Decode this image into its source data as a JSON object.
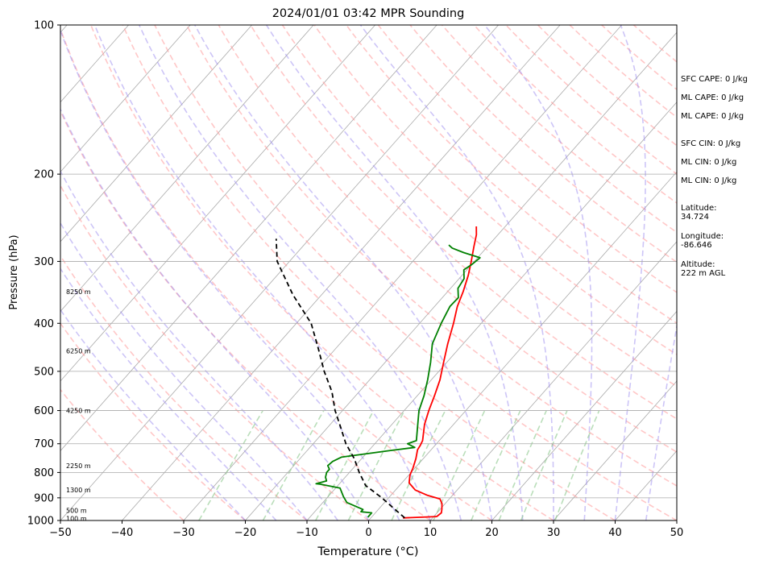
{
  "chart_data": {
    "type": "line",
    "title": "2024/01/01 03:42 MPR Sounding",
    "xlabel": "Temperature (°C)",
    "ylabel": "Pressure (hPa)",
    "xlim": [
      -50,
      50
    ],
    "ylim": [
      1000,
      100
    ],
    "y_scale": "log",
    "x_ticks": [
      "−50",
      "−40",
      "−30",
      "−20",
      "−10",
      "0",
      "10",
      "20",
      "30",
      "40",
      "50"
    ],
    "x_tick_values": [
      -50,
      -40,
      -30,
      -20,
      -10,
      0,
      10,
      20,
      30,
      40,
      50
    ],
    "y_ticks": [
      "100",
      "200",
      "300",
      "400",
      "500",
      "600",
      "700",
      "800",
      "900",
      "1000"
    ],
    "y_tick_values": [
      100,
      200,
      300,
      400,
      500,
      600,
      700,
      800,
      900,
      1000
    ],
    "grid": true,
    "skew": "Skew-T log-P",
    "background_lines": {
      "isotherms_color": "#aaaaaa",
      "dry_adiabats_color": "#ff9999",
      "moist_adiabats_color": "#9b8cf0",
      "mixing_ratio_color": "#8cc88c"
    },
    "height_labels": [
      {
        "text": "100 m",
        "pressure": 990
      },
      {
        "text": "500 m",
        "pressure": 955
      },
      {
        "text": "1300 m",
        "pressure": 868
      },
      {
        "text": "2250 m",
        "pressure": 775
      },
      {
        "text": "4250 m",
        "pressure": 600
      },
      {
        "text": "6250 m",
        "pressure": 455
      },
      {
        "text": "8250 m",
        "pressure": 345
      }
    ],
    "series": [
      {
        "role": "temperature",
        "color": "#ff0000",
        "pressure": [
          988,
          982,
          965,
          950,
          925,
          905,
          890,
          868,
          840,
          810,
          785,
          750,
          720,
          705,
          690,
          640,
          600,
          560,
          520,
          480,
          440,
          400,
          370,
          345,
          320,
          300,
          280,
          265,
          255
        ],
        "temperature": [
          5.2,
          10.5,
          10.7,
          10.3,
          9.5,
          8.5,
          6.0,
          3.2,
          1.2,
          0.2,
          -0.3,
          -1.2,
          -2.2,
          -2.4,
          -2.7,
          -4.7,
          -6.0,
          -7.2,
          -8.6,
          -10.5,
          -12.5,
          -14.5,
          -16.3,
          -17.5,
          -19.0,
          -20.5,
          -22.2,
          -23.5,
          -24.7
        ]
      },
      {
        "role": "dewpoint",
        "color": "#008000",
        "pressure": [
          985,
          965,
          960,
          950,
          920,
          895,
          860,
          845,
          843,
          832,
          818,
          800,
          788,
          775,
          760,
          745,
          723,
          712,
          700,
          690,
          640,
          600,
          560,
          520,
          480,
          440,
          400,
          370,
          355,
          340,
          325,
          312,
          305,
          295,
          288,
          282,
          278
        ],
        "temperature": [
          -0.6,
          -0.6,
          -2.5,
          -2.5,
          -6.1,
          -7.5,
          -9.3,
          -13.0,
          -13.8,
          -12.5,
          -13.2,
          -13.7,
          -13.7,
          -14.5,
          -14.3,
          -13.5,
          -6.7,
          -3.0,
          -4.7,
          -3.7,
          -5.8,
          -7.6,
          -8.9,
          -10.6,
          -12.6,
          -15.0,
          -16.5,
          -17.5,
          -17.4,
          -18.8,
          -19.2,
          -20.5,
          -20.0,
          -19.6,
          -23.0,
          -25.5,
          -26.5
        ]
      },
      {
        "role": "parcel",
        "color": "#000000",
        "style": "dashed",
        "pressure": [
          988,
          950,
          900,
          850,
          800,
          750,
          700,
          650,
          600,
          550,
          500,
          450,
          400,
          350,
          300,
          270
        ],
        "temperature": [
          5.5,
          2.7,
          -1.1,
          -5.5,
          -8.4,
          -11.2,
          -14.7,
          -17.8,
          -21.2,
          -24.4,
          -28.6,
          -32.8,
          -37.6,
          -44.7,
          -52.0,
          -55.4
        ]
      }
    ]
  },
  "side_panel": {
    "sfc_cape": "SFC CAPE: 0 J/kg",
    "ml_cape_1": "ML CAPE: 0 J/kg",
    "ml_cape_2": "ML CAPE: 0 J/kg",
    "sfc_cin": "SFC CIN: 0 J/kg",
    "ml_cin_1": "ML CIN: 0 J/kg",
    "ml_cin_2": "ML CIN: 0 J/kg",
    "latitude": "Latitude:\n34.724",
    "longitude": "Longitude:\n-86.646",
    "altitude": "Altitude:\n222 m AGL"
  }
}
